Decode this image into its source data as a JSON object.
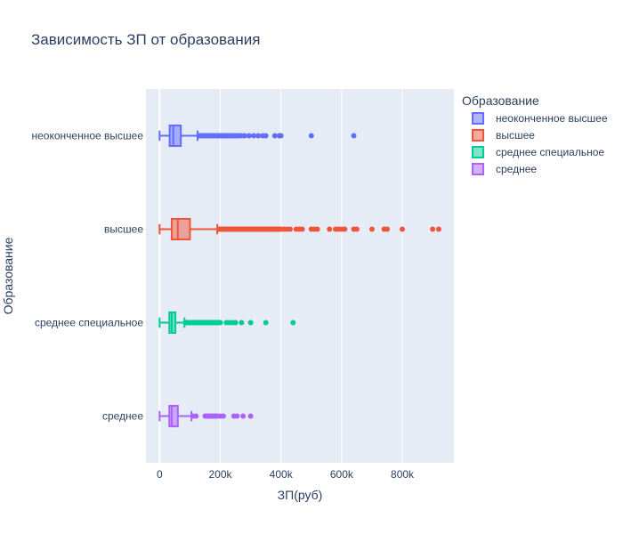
{
  "chart_data": {
    "type": "box",
    "orientation": "horizontal",
    "title": "Зависимость ЗП от образования",
    "xlabel": "ЗП(руб)",
    "ylabel": "Образование",
    "xlim": [
      -45000,
      970000
    ],
    "xticks": [
      0,
      200000,
      400000,
      600000,
      800000
    ],
    "xtick_labels": [
      "0",
      "200k",
      "400k",
      "600k",
      "800k"
    ],
    "grid": true,
    "legend": {
      "title": "Образование",
      "position": "right"
    },
    "series": [
      {
        "name": "неоконченное высшее",
        "color": "#636efa",
        "stats": {
          "min": 0,
          "q1": 33000,
          "median": 45000,
          "q3": 70000,
          "max": 125000
        },
        "outliers": [
          130000,
          135000,
          140000,
          145000,
          150000,
          155000,
          160000,
          165000,
          170000,
          175000,
          180000,
          185000,
          190000,
          195000,
          200000,
          205000,
          210000,
          215000,
          220000,
          225000,
          230000,
          235000,
          240000,
          245000,
          250000,
          255000,
          260000,
          270000,
          280000,
          295000,
          310000,
          325000,
          340000,
          350000,
          380000,
          395000,
          400000,
          500000,
          640000
        ]
      },
      {
        "name": "высшее",
        "color": "#ef553b",
        "stats": {
          "min": 0,
          "q1": 40000,
          "median": 60000,
          "q3": 100000,
          "max": 190000
        },
        "outliers": [
          195000,
          200000,
          205000,
          210000,
          215000,
          220000,
          225000,
          230000,
          235000,
          240000,
          245000,
          250000,
          255000,
          260000,
          265000,
          270000,
          275000,
          280000,
          285000,
          290000,
          295000,
          300000,
          305000,
          310000,
          315000,
          320000,
          325000,
          330000,
          335000,
          340000,
          345000,
          350000,
          355000,
          360000,
          365000,
          370000,
          375000,
          380000,
          385000,
          390000,
          395000,
          400000,
          410000,
          420000,
          430000,
          450000,
          460000,
          470000,
          500000,
          510000,
          520000,
          560000,
          580000,
          590000,
          600000,
          610000,
          640000,
          650000,
          700000,
          740000,
          750000,
          800000,
          900000,
          920000
        ]
      },
      {
        "name": "среднее специальное",
        "color": "#00cc96",
        "stats": {
          "min": 0,
          "q1": 32000,
          "median": 40000,
          "q3": 52000,
          "max": 82000
        },
        "outliers": [
          85000,
          90000,
          95000,
          100000,
          105000,
          110000,
          115000,
          120000,
          125000,
          130000,
          135000,
          140000,
          145000,
          150000,
          155000,
          160000,
          165000,
          170000,
          175000,
          180000,
          185000,
          190000,
          195000,
          200000,
          220000,
          230000,
          240000,
          250000,
          270000,
          300000,
          350000,
          440000
        ]
      },
      {
        "name": "среднее",
        "color": "#ab63fa",
        "stats": {
          "min": 0,
          "q1": 32000,
          "median": 40000,
          "q3": 60000,
          "max": 105000
        },
        "outliers": [
          110000,
          120000,
          150000,
          155000,
          160000,
          165000,
          170000,
          175000,
          180000,
          185000,
          190000,
          200000,
          210000,
          245000,
          255000,
          275000,
          300000
        ]
      }
    ]
  }
}
